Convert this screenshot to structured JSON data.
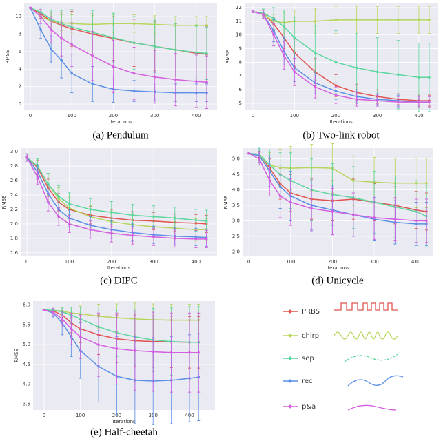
{
  "chart_data": [
    {
      "type": "line",
      "caption": "(a) Pendulum",
      "xlabel": "Iterations",
      "ylabel": "RMSE",
      "x": [
        0,
        25,
        50,
        75,
        100,
        150,
        200,
        250,
        300,
        350,
        400,
        425
      ],
      "xlim": [
        -15,
        450
      ],
      "xticks": [
        0,
        100,
        200,
        300,
        400
      ],
      "ylim": [
        -0.7,
        11.5
      ],
      "yticks": [
        0,
        2,
        4,
        6,
        8,
        10
      ],
      "series": [
        {
          "name": "PRBS",
          "color": "#e0534f",
          "values": [
            11,
            10.3,
            9.5,
            9,
            8.6,
            8,
            7.5,
            7,
            6.6,
            6.2,
            5.8,
            5.7
          ],
          "errors": [
            0,
            0.5,
            1,
            1.5,
            2,
            2.3,
            2.5,
            2.7,
            2.8,
            3,
            3.2,
            3.2
          ]
        },
        {
          "name": "chirp",
          "color": "#b5d65a",
          "values": [
            11,
            10,
            9.5,
            9.3,
            9.2,
            9.1,
            9.2,
            9.2,
            9.1,
            9,
            9,
            9
          ],
          "errors": [
            0,
            0.5,
            0.8,
            0.9,
            1,
            1,
            1,
            1,
            1,
            1,
            1,
            1
          ]
        },
        {
          "name": "sep",
          "color": "#5cd69e",
          "values": [
            11,
            10.5,
            9.7,
            9.2,
            8.8,
            8.2,
            7.6,
            7,
            6.6,
            6.2,
            5.9,
            5.8
          ],
          "errors": [
            0,
            0.5,
            1,
            1.5,
            2,
            2.5,
            2.8,
            3,
            3,
            3,
            3,
            3
          ]
        },
        {
          "name": "rec",
          "color": "#5b8ee6",
          "values": [
            11,
            8.5,
            6.3,
            5,
            3.5,
            2.3,
            1.7,
            1.5,
            1.4,
            1.3,
            1.3,
            1.3
          ],
          "errors": [
            0,
            1,
            1.5,
            2,
            2.2,
            2,
            1.5,
            1.2,
            1,
            1,
            1,
            1
          ]
        },
        {
          "name": "p&a",
          "color": "#d45fe0",
          "values": [
            11,
            10,
            8.5,
            7.5,
            6.8,
            5.5,
            4.3,
            3.5,
            3.1,
            2.8,
            2.6,
            2.5
          ],
          "errors": [
            0,
            0.8,
            1.5,
            2,
            2.5,
            2.8,
            3,
            3,
            3,
            3,
            3,
            3
          ]
        }
      ]
    },
    {
      "type": "line",
      "caption": "(b) Two-link robot",
      "xlabel": "Iterations",
      "ylabel": "RMSE",
      "x": [
        0,
        25,
        50,
        75,
        100,
        150,
        200,
        250,
        300,
        350,
        400,
        425
      ],
      "xlim": [
        -20,
        445
      ],
      "xticks": [
        0,
        100,
        200,
        300,
        400
      ],
      "ylim": [
        4.5,
        12.3
      ],
      "yticks": [
        5,
        6,
        7,
        8,
        9,
        10,
        11,
        12
      ],
      "series": [
        {
          "name": "PRBS",
          "color": "#e0534f",
          "values": [
            11.7,
            11.6,
            10.8,
            9.8,
            8.7,
            7.3,
            6.3,
            5.8,
            5.5,
            5.3,
            5.2,
            5.2
          ],
          "errors": [
            0,
            0.2,
            0.5,
            0.8,
            1,
            1,
            0.8,
            0.6,
            0.5,
            0.4,
            0.4,
            0.4
          ]
        },
        {
          "name": "chirp",
          "color": "#b5d65a",
          "values": [
            11.7,
            11.5,
            11,
            10.9,
            11,
            11,
            11.1,
            11.1,
            11.1,
            11.1,
            11.1,
            11.1
          ],
          "errors": [
            0,
            0.3,
            0.5,
            0.7,
            0.8,
            0.9,
            1,
            1,
            1,
            1,
            1,
            1
          ]
        },
        {
          "name": "sep",
          "color": "#5cd69e",
          "values": [
            11.7,
            11.6,
            11.2,
            10.6,
            9.8,
            8.7,
            8,
            7.6,
            7.3,
            7.1,
            6.9,
            6.9
          ],
          "errors": [
            0,
            0.3,
            0.8,
            1.2,
            1.5,
            2,
            2.3,
            2.5,
            2.5,
            2.5,
            2.5,
            2.5
          ]
        },
        {
          "name": "rec",
          "color": "#5b8ee6",
          "values": [
            11.7,
            11.5,
            10.3,
            8.8,
            7.6,
            6.5,
            5.9,
            5.5,
            5.3,
            5.2,
            5.1,
            5.1
          ],
          "errors": [
            0,
            0.3,
            0.8,
            1,
            1,
            0.8,
            0.6,
            0.5,
            0.4,
            0.4,
            0.4,
            0.4
          ]
        },
        {
          "name": "p&a",
          "color": "#d45fe0",
          "values": [
            11.7,
            11.5,
            10,
            8.5,
            7.3,
            6.2,
            5.6,
            5.3,
            5.2,
            5.1,
            5.1,
            5.1
          ],
          "errors": [
            0,
            0.3,
            0.8,
            1,
            1,
            0.8,
            0.6,
            0.5,
            0.4,
            0.4,
            0.4,
            0.4
          ]
        }
      ]
    },
    {
      "type": "line",
      "caption": "(c) DIPC",
      "xlabel": "Iterations",
      "ylabel": "RMSE",
      "x": [
        0,
        25,
        50,
        75,
        100,
        150,
        200,
        250,
        300,
        350,
        400,
        425
      ],
      "xlim": [
        -15,
        450
      ],
      "xticks": [
        0,
        100,
        200,
        300,
        400
      ],
      "ylim": [
        1.55,
        3.05
      ],
      "yticks": [
        1.6,
        1.8,
        {
          "value": 2,
          "label": "2.0"
        },
        2.2,
        2.4,
        2.6,
        2.8,
        {
          "value": 3,
          "label": "3.0"
        }
      ],
      "series": [
        {
          "name": "PRBS",
          "color": "#e0534f",
          "values": [
            2.92,
            2.78,
            2.5,
            2.3,
            2.2,
            2.12,
            2.08,
            2.05,
            2.04,
            2.02,
            2.01,
            2.0
          ],
          "errors": [
            0.05,
            0.1,
            0.12,
            0.12,
            0.12,
            0.12,
            0.12,
            0.12,
            0.12,
            0.12,
            0.12,
            0.12
          ]
        },
        {
          "name": "chirp",
          "color": "#b5d65a",
          "values": [
            2.92,
            2.8,
            2.55,
            2.35,
            2.22,
            2.1,
            2.03,
            1.99,
            1.96,
            1.94,
            1.92,
            1.92
          ],
          "errors": [
            0.05,
            0.1,
            0.15,
            0.15,
            0.15,
            0.15,
            0.15,
            0.15,
            0.15,
            0.15,
            0.15,
            0.15
          ]
        },
        {
          "name": "sep",
          "color": "#5cd69e",
          "values": [
            2.92,
            2.8,
            2.55,
            2.38,
            2.28,
            2.2,
            2.16,
            2.12,
            2.1,
            2.08,
            2.05,
            2.04
          ],
          "errors": [
            0.05,
            0.1,
            0.15,
            0.15,
            0.15,
            0.15,
            0.15,
            0.15,
            0.15,
            0.15,
            0.15,
            0.15
          ]
        },
        {
          "name": "rec",
          "color": "#5b8ee6",
          "values": [
            2.92,
            2.72,
            2.42,
            2.2,
            2.08,
            1.98,
            1.92,
            1.88,
            1.85,
            1.83,
            1.82,
            1.81
          ],
          "errors": [
            0.05,
            0.1,
            0.12,
            0.12,
            0.12,
            0.12,
            0.12,
            0.12,
            0.12,
            0.12,
            0.12,
            0.12
          ]
        },
        {
          "name": "p&a",
          "color": "#d45fe0",
          "values": [
            2.92,
            2.65,
            2.3,
            2.1,
            2.0,
            1.92,
            1.87,
            1.84,
            1.82,
            1.8,
            1.79,
            1.79
          ],
          "errors": [
            0.05,
            0.1,
            0.12,
            0.12,
            0.12,
            0.12,
            0.12,
            0.12,
            0.12,
            0.12,
            0.12,
            0.12
          ]
        }
      ]
    },
    {
      "type": "line",
      "caption": "(d) Unicycle",
      "xlabel": "Iterations",
      "ylabel": "RMSE",
      "x": [
        0,
        25,
        50,
        75,
        100,
        150,
        200,
        250,
        300,
        350,
        400,
        425
      ],
      "xlim": [
        -15,
        440
      ],
      "xticks": [
        0,
        100,
        200,
        300,
        400
      ],
      "ylim": [
        1.85,
        5.35
      ],
      "yticks": [
        {
          "value": 2,
          "label": "2.0"
        },
        2.5,
        {
          "value": 3,
          "label": "3.0"
        },
        3.5,
        {
          "value": 4,
          "label": "4.0"
        },
        4.5,
        {
          "value": 5,
          "label": "5.0"
        }
      ],
      "series": [
        {
          "name": "PRBS",
          "color": "#e0534f",
          "values": [
            5.18,
            5.15,
            4.7,
            4.2,
            3.9,
            3.7,
            3.65,
            3.7,
            3.6,
            3.5,
            3.35,
            3.3
          ],
          "errors": [
            0,
            0.1,
            0.3,
            0.5,
            0.6,
            0.65,
            0.65,
            0.65,
            0.6,
            0.6,
            0.6,
            0.6
          ]
        },
        {
          "name": "chirp",
          "color": "#b5d65a",
          "values": [
            5.18,
            5.1,
            4.8,
            4.72,
            4.7,
            4.72,
            4.7,
            4.3,
            4.25,
            4.22,
            4.22,
            4.22
          ],
          "errors": [
            0,
            0.2,
            0.4,
            0.6,
            0.7,
            0.75,
            0.8,
            0.8,
            0.8,
            0.8,
            0.8,
            0.8
          ]
        },
        {
          "name": "sep",
          "color": "#5cd69e",
          "values": [
            5.18,
            5.15,
            4.8,
            4.5,
            4.3,
            4.0,
            3.85,
            3.75,
            3.6,
            3.45,
            3.3,
            3.15
          ],
          "errors": [
            0,
            0.2,
            0.5,
            0.7,
            0.9,
            1,
            1,
            1,
            1,
            1,
            1,
            1
          ]
        },
        {
          "name": "rec",
          "color": "#5b8ee6",
          "values": [
            5.18,
            5.1,
            4.6,
            4.1,
            3.8,
            3.5,
            3.35,
            3.2,
            3.05,
            2.95,
            2.9,
            2.9
          ],
          "errors": [
            0,
            0.2,
            0.5,
            0.7,
            0.8,
            0.8,
            0.8,
            0.7,
            0.7,
            0.7,
            0.7,
            0.7
          ]
        },
        {
          "name": "p&a",
          "color": "#d45fe0",
          "values": [
            5.18,
            5.0,
            4.3,
            3.8,
            3.6,
            3.4,
            3.3,
            3.2,
            3.1,
            3.05,
            3.0,
            3.0
          ],
          "errors": [
            0,
            0.2,
            0.5,
            0.7,
            0.75,
            0.75,
            0.75,
            0.7,
            0.7,
            0.7,
            0.7,
            0.7
          ]
        }
      ]
    },
    {
      "type": "line",
      "caption": "(e) Half-cheetah",
      "xlabel": "Iterations",
      "ylabel": "RMSE",
      "x": [
        0,
        25,
        50,
        75,
        100,
        150,
        200,
        250,
        300,
        350,
        400,
        425
      ],
      "xlim": [
        -30,
        470
      ],
      "xticks": [
        0,
        100,
        200,
        300,
        400
      ],
      "ylim": [
        3.35,
        6.1
      ],
      "yticks": [
        3.5,
        {
          "value": 4,
          "label": "4.0"
        },
        4.5,
        {
          "value": 5,
          "label": "5.0"
        },
        5.5,
        {
          "value": 6,
          "label": "6.0"
        }
      ],
      "series": [
        {
          "name": "PRBS",
          "color": "#e0534f",
          "values": [
            5.88,
            5.85,
            5.75,
            5.55,
            5.4,
            5.25,
            5.15,
            5.1,
            5.08,
            5.07,
            5.06,
            5.06
          ],
          "errors": [
            0,
            0.05,
            0.15,
            0.25,
            0.35,
            0.5,
            0.6,
            0.65,
            0.65,
            0.65,
            0.65,
            0.65
          ]
        },
        {
          "name": "chirp",
          "color": "#b5d65a",
          "values": [
            5.88,
            5.87,
            5.85,
            5.8,
            5.78,
            5.72,
            5.68,
            5.65,
            5.63,
            5.62,
            5.62,
            5.62
          ],
          "errors": [
            0,
            0.05,
            0.1,
            0.15,
            0.2,
            0.3,
            0.35,
            0.4,
            0.4,
            0.4,
            0.4,
            0.4
          ]
        },
        {
          "name": "sep",
          "color": "#5cd69e",
          "values": [
            5.88,
            5.87,
            5.83,
            5.75,
            5.65,
            5.45,
            5.3,
            5.2,
            5.12,
            5.08,
            5.06,
            5.06
          ],
          "errors": [
            0,
            0.05,
            0.1,
            0.2,
            0.3,
            0.45,
            0.6,
            0.7,
            0.8,
            0.85,
            0.9,
            0.9
          ]
        },
        {
          "name": "rec",
          "color": "#5b8ee6",
          "values": [
            5.88,
            5.8,
            5.55,
            5.2,
            4.85,
            4.45,
            4.2,
            4.1,
            4.08,
            4.1,
            4.15,
            4.18
          ],
          "errors": [
            0,
            0.1,
            0.3,
            0.5,
            0.7,
            0.9,
            1,
            1.1,
            1.1,
            1.1,
            1.1,
            1.1
          ]
        },
        {
          "name": "p&a",
          "color": "#d45fe0",
          "values": [
            5.88,
            5.82,
            5.65,
            5.4,
            5.2,
            5.0,
            4.9,
            4.85,
            4.82,
            4.8,
            4.8,
            4.8
          ],
          "errors": [
            0,
            0.1,
            0.2,
            0.4,
            0.55,
            0.8,
            0.9,
            1,
            1,
            1,
            1,
            1
          ]
        }
      ]
    }
  ]
}
